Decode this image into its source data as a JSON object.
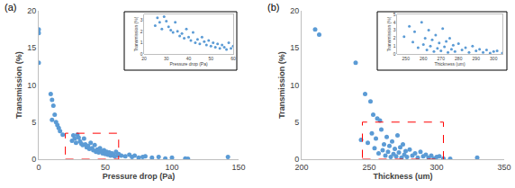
{
  "chart_data": [
    {
      "type": "scatter",
      "title": "(a)",
      "x_label": "Pressure drop (Pa)",
      "y_label": "Transmission (%)",
      "x": [
        0,
        0,
        0,
        9,
        10,
        11,
        12,
        10,
        13,
        14,
        15,
        16,
        18,
        25,
        26,
        27,
        28,
        29,
        30,
        31,
        32,
        33,
        34,
        35,
        36,
        37,
        38,
        39,
        40,
        41,
        42,
        43,
        44,
        45,
        46,
        47,
        48,
        49,
        50,
        51,
        52,
        53,
        54,
        55,
        56,
        57,
        58,
        59,
        60,
        62,
        65,
        68,
        70,
        72,
        75,
        78,
        80,
        85,
        90,
        95,
        100,
        110,
        112,
        142
      ],
      "values": [
        17.5,
        17,
        13,
        8.8,
        8,
        7.2,
        6,
        5.3,
        5,
        4.6,
        4.2,
        3.8,
        3.3,
        2.5,
        3.2,
        2.8,
        2.2,
        3.3,
        2.9,
        2.4,
        2.1,
        1.9,
        2.8,
        2.0,
        1.6,
        1.8,
        1.4,
        2.2,
        1.5,
        1.2,
        1.9,
        1.0,
        1.3,
        0.9,
        1.5,
        1.1,
        0.8,
        1.2,
        0.7,
        1.0,
        0.6,
        0.9,
        0.5,
        0.8,
        0.6,
        0.4,
        1.0,
        0.5,
        0.7,
        0.5,
        0.4,
        0.6,
        0.3,
        0.5,
        0.2,
        0.3,
        0.4,
        0.2,
        0.3,
        0.1,
        0.2,
        0.1,
        0.05,
        0.3
      ],
      "color": "#5b9bd5",
      "marker": "circle",
      "grid": false,
      "xlim": [
        0,
        150
      ],
      "xticks": [
        0,
        50,
        100,
        150
      ],
      "ylim": [
        0,
        20
      ],
      "yticks": [
        0,
        5,
        10,
        15,
        20
      ],
      "inset": {
        "x_label": "Pressure drop (Pa)",
        "y_label": "Transmission (%)",
        "xlim": [
          20,
          60
        ],
        "xticks": [
          20,
          30,
          40,
          50,
          60
        ],
        "ylim": [
          0,
          3.5
        ],
        "yticks": [
          0,
          1,
          2,
          3
        ]
      }
    },
    {
      "type": "scatter",
      "title": "(b)",
      "x_label": "Thickness (um)",
      "y_label": "Transmission (%)",
      "x": [
        210,
        213,
        240,
        247,
        251,
        253,
        256,
        258,
        244,
        249,
        252,
        254,
        255,
        257,
        259,
        260,
        261,
        262,
        263,
        264,
        265,
        266,
        267,
        268,
        269,
        270,
        271,
        272,
        273,
        274,
        275,
        276,
        277,
        278,
        280,
        282,
        284,
        286,
        288,
        290,
        292,
        294,
        296,
        298,
        300,
        302,
        305,
        310,
        330
      ],
      "values": [
        17.5,
        16.8,
        13,
        8.8,
        7.8,
        6,
        5.5,
        5.2,
        2.6,
        2.2,
        3.5,
        1.5,
        2.8,
        0.8,
        4.0,
        1.2,
        2.0,
        0.5,
        3.0,
        1.0,
        1.8,
        0.3,
        2.4,
        0.7,
        1.4,
        0.4,
        3.2,
        0.9,
        1.6,
        0.2,
        2.0,
        0.6,
        1.1,
        0.3,
        1.3,
        0.5,
        0.8,
        0.2,
        1.0,
        0.4,
        0.6,
        0.2,
        0.5,
        0.1,
        0.3,
        0.4,
        0.1,
        0.05,
        0.2
      ],
      "color": "#5b9bd5",
      "marker": "circle",
      "grid": false,
      "xlim": [
        200,
        350
      ],
      "xticks": [
        200,
        250,
        300,
        350
      ],
      "ylim": [
        0,
        20
      ],
      "yticks": [
        0,
        5,
        10,
        15,
        20
      ],
      "inset": {
        "x_label": "Thickness (um)",
        "y_label": "Transmission (%)",
        "xlim": [
          245,
          305
        ],
        "xticks": [
          250,
          260,
          270,
          280,
          290,
          300
        ],
        "ylim": [
          0,
          5
        ],
        "yticks": [
          0,
          1,
          2,
          3,
          4,
          5
        ]
      }
    }
  ]
}
